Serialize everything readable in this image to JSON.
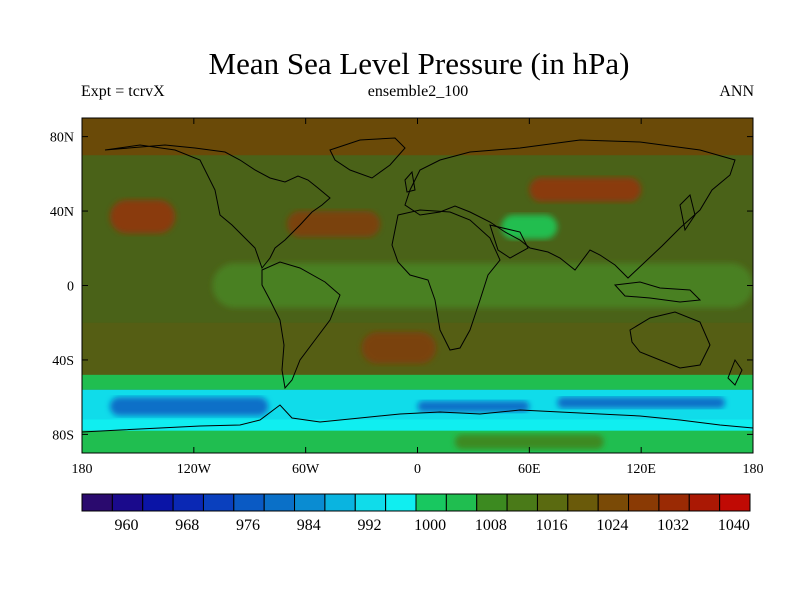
{
  "header": {
    "title": "Mean Sea Level Pressure (in hPa)",
    "left": "Expt = tcrvX",
    "center": "ensemble2_100",
    "right": "ANN"
  },
  "axes": {
    "y_ticks": [
      {
        "value": 80,
        "label": "80N"
      },
      {
        "value": 40,
        "label": "40N"
      },
      {
        "value": 0,
        "label": "0"
      },
      {
        "value": -40,
        "label": "40S"
      },
      {
        "value": -80,
        "label": "80S"
      }
    ],
    "x_ticks": [
      {
        "value": -180,
        "label": "180"
      },
      {
        "value": -120,
        "label": "120W"
      },
      {
        "value": -60,
        "label": "60W"
      },
      {
        "value": 0,
        "label": "0"
      },
      {
        "value": 60,
        "label": "60E"
      },
      {
        "value": 120,
        "label": "120E"
      },
      {
        "value": 180,
        "label": "180"
      }
    ],
    "lon_range": [
      -180,
      180
    ],
    "lat_range": [
      -90,
      90
    ]
  },
  "colorbar": {
    "colors": [
      "#2a0a6e",
      "#1a0a8c",
      "#0a14a6",
      "#0a28b4",
      "#0a40be",
      "#0a5ac4",
      "#0a70c8",
      "#0a8cd2",
      "#0ab4e0",
      "#10dcea",
      "#10eef0",
      "#18c860",
      "#20be50",
      "#3c8a20",
      "#4a7a18",
      "#5a6a10",
      "#6a5a0a",
      "#7a4a06",
      "#8a3a04",
      "#9a2a04",
      "#aa1804",
      "#c00a04"
    ],
    "labels": [
      {
        "index": 2,
        "text": "960"
      },
      {
        "index": 4,
        "text": "968"
      },
      {
        "index": 6,
        "text": "976"
      },
      {
        "index": 8,
        "text": "984"
      },
      {
        "index": 10,
        "text": "992"
      },
      {
        "index": 12,
        "text": "1000"
      },
      {
        "index": 14,
        "text": "1008"
      },
      {
        "index": 16,
        "text": "1016"
      },
      {
        "index": 18,
        "text": "1024"
      },
      {
        "index": 20,
        "text": "1032"
      },
      {
        "index": 22,
        "text": "1040"
      }
    ]
  },
  "regions": [
    {
      "name": "background",
      "color": "#4a6218",
      "lat": [
        -90,
        90
      ],
      "lon": [
        -180,
        180
      ]
    },
    {
      "name": "arctic-high",
      "color": "#6a4a08",
      "lat": [
        70,
        90
      ],
      "lon": [
        -180,
        180
      ]
    },
    {
      "name": "subtropical-band-south",
      "color": "#555e14",
      "lat": [
        -50,
        -20
      ],
      "lon": [
        -180,
        180
      ]
    },
    {
      "name": "north-pacific-high",
      "color": "#8a3a0c",
      "lat": [
        28,
        46
      ],
      "lon": [
        -165,
        -130
      ]
    },
    {
      "name": "azores-high",
      "color": "#7a420a",
      "lat": [
        26,
        40
      ],
      "lon": [
        -70,
        -20
      ]
    },
    {
      "name": "siberian-high",
      "color": "#8a3a0c",
      "lat": [
        45,
        58
      ],
      "lon": [
        60,
        120
      ]
    },
    {
      "name": "south-atlantic-high",
      "color": "#7a420a",
      "lat": [
        -42,
        -25
      ],
      "lon": [
        -30,
        10
      ]
    },
    {
      "name": "equatorial-low",
      "color": "#4a8020",
      "lat": [
        -12,
        12
      ],
      "lon": [
        -110,
        180
      ]
    },
    {
      "name": "tibet-low",
      "color": "#20be50",
      "lat": [
        25,
        38
      ],
      "lon": [
        45,
        75
      ]
    },
    {
      "name": "southern-ocean-green",
      "color": "#20be50",
      "lat": [
        -56,
        -48
      ],
      "lon": [
        -180,
        180
      ]
    },
    {
      "name": "southern-ocean-cyan",
      "color": "#10dcea",
      "lat": [
        -72,
        -56
      ],
      "lon": [
        -180,
        180
      ]
    },
    {
      "name": "southern-ocean-blue-1",
      "color": "#0a70c8",
      "lat": [
        -70,
        -60
      ],
      "lon": [
        -165,
        -80
      ]
    },
    {
      "name": "southern-ocean-blue-2",
      "color": "#0a70c8",
      "lat": [
        -68,
        -62
      ],
      "lon": [
        0,
        60
      ]
    },
    {
      "name": "southern-ocean-blue-3",
      "color": "#0a70c8",
      "lat": [
        -66,
        -60
      ],
      "lon": [
        75,
        165
      ]
    },
    {
      "name": "antarctica-cyan",
      "color": "#10eef0",
      "lat": [
        -90,
        -72
      ],
      "lon": [
        -180,
        180
      ]
    },
    {
      "name": "antarctica-green",
      "color": "#20be50",
      "lat": [
        -90,
        -78
      ],
      "lon": [
        -180,
        180
      ]
    },
    {
      "name": "antarctica-high",
      "color": "#3c8a20",
      "lat": [
        -88,
        -80
      ],
      "lon": [
        20,
        100
      ]
    }
  ]
}
